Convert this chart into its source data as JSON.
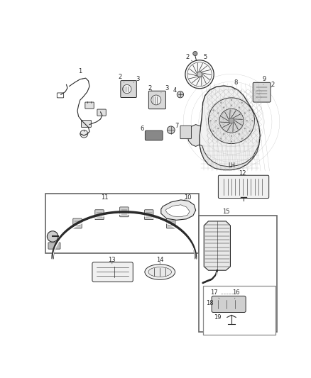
{
  "bg_color": "#ffffff",
  "line_color": "#2a2a2a",
  "fig_width": 4.38,
  "fig_height": 5.33,
  "dpi": 100,
  "fs": 6.0,
  "lw": 0.8
}
